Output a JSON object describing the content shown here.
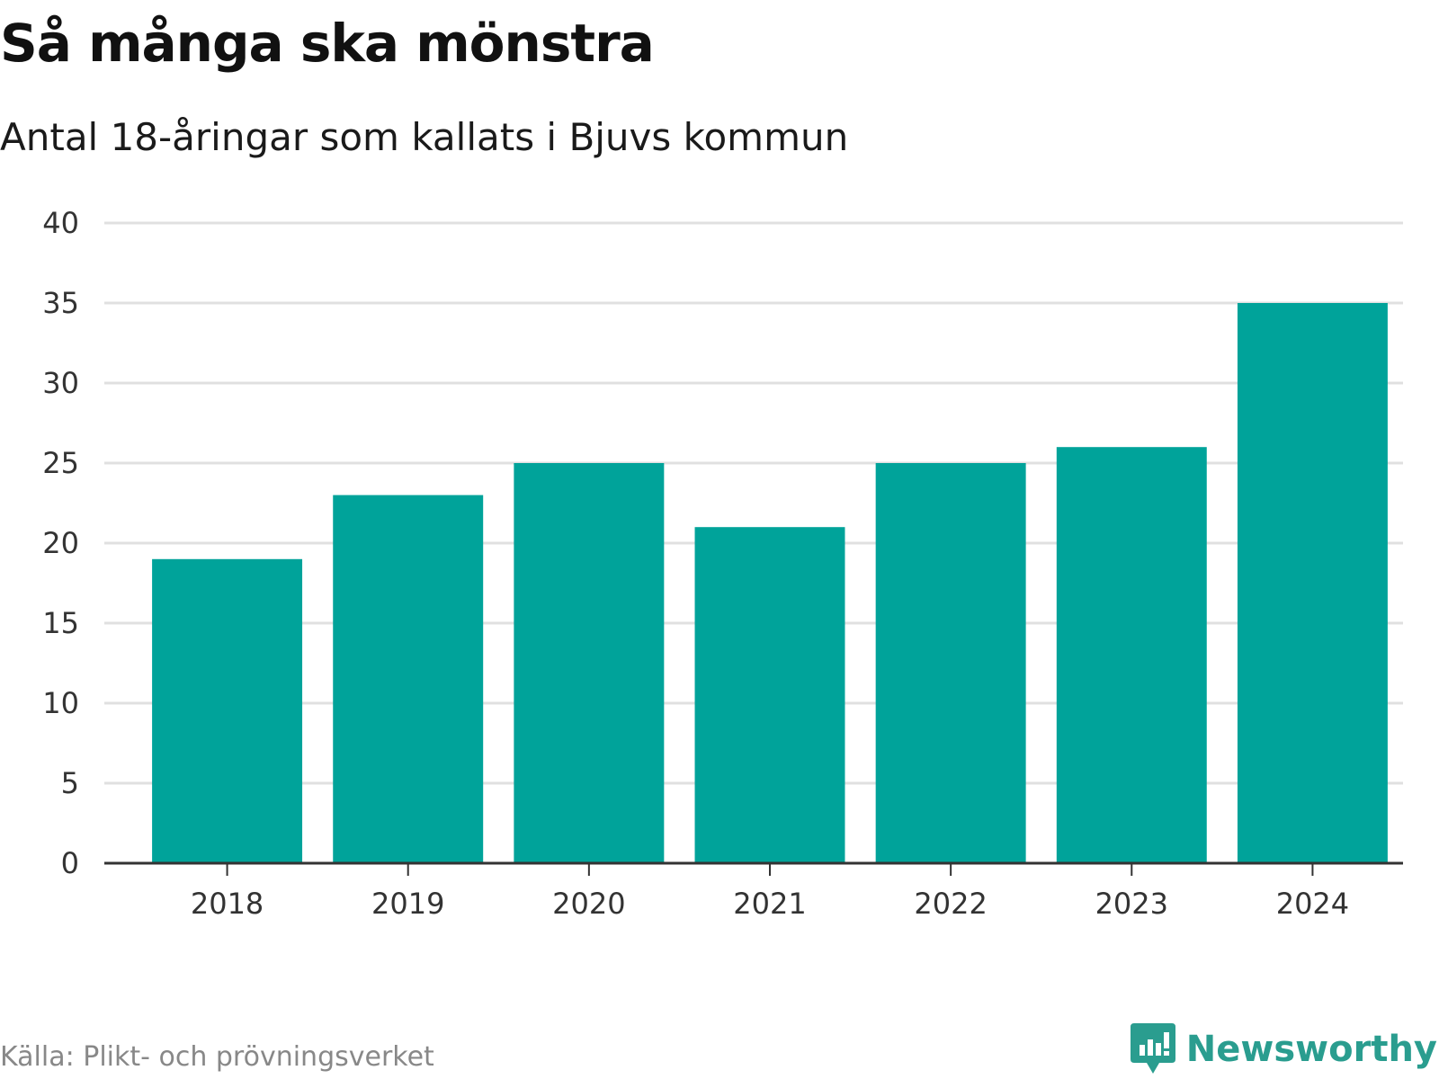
{
  "header": {
    "title": "Så många ska mönstra",
    "subtitle": "Antal 18-åringar som kallats i Bjuvs kommun"
  },
  "footer": {
    "source": "Källa: Plikt- och prövningsverket",
    "brand": "Newsworthy"
  },
  "colors": {
    "bar": "#00a39a",
    "brand": "#2a9d8f",
    "grid": "#e0e0e0",
    "axis": "#333333"
  },
  "icons": {
    "brand_logo": "newsworthy-logo-icon"
  },
  "chart_data": {
    "type": "bar",
    "categories": [
      "2018",
      "2019",
      "2020",
      "2021",
      "2022",
      "2023",
      "2024"
    ],
    "values": [
      19,
      23,
      25,
      21,
      25,
      26,
      35
    ],
    "title": "Så många ska mönstra",
    "subtitle": "Antal 18-åringar som kallats i Bjuvs kommun",
    "xlabel": "",
    "ylabel": "",
    "ylim": [
      0,
      40
    ],
    "yticks": [
      0,
      5,
      10,
      15,
      20,
      25,
      30,
      35,
      40
    ],
    "grid": true,
    "legend": "none"
  }
}
